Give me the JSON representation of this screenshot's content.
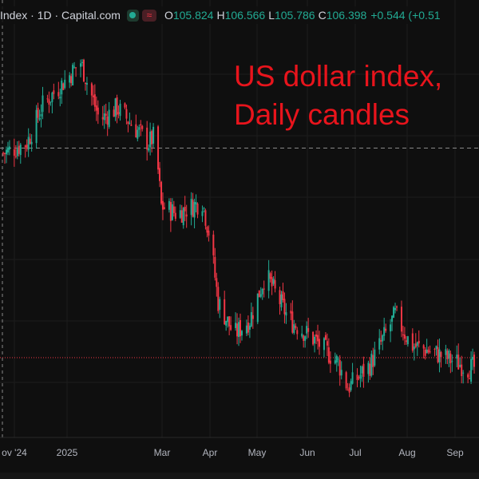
{
  "legend": {
    "symbol": "Index · 1D · Capital.com",
    "open_label": "O",
    "open": "105.824",
    "high_label": "H",
    "high": "106.566",
    "low_label": "L",
    "low": "105.786",
    "close_label": "C",
    "close": "106.398",
    "change": "+0.544 (+0.51"
  },
  "title_lines": [
    "US dollar index,",
    "Daily candles"
  ],
  "colors": {
    "up": "#22ab94",
    "down": "#f23645",
    "background": "#0f0f0f",
    "annotation": "#e8141c"
  },
  "icons": [
    "visibility-dot-icon",
    "source-wave-icon"
  ],
  "chart_data": {
    "type": "candlestick",
    "title": "US dollar index, Daily candles",
    "x_ticks": [
      "ov '24",
      "2025",
      "Mar",
      "Apr",
      "May",
      "Jun",
      "Jul",
      "Aug",
      "Sep"
    ],
    "y_range": [
      95,
      111
    ],
    "reference_levels": {
      "crosshair": 106.4,
      "current_price": 98.1
    },
    "approx_close_path": [
      {
        "date": "2024-11-25",
        "close": 106.2
      },
      {
        "date": "2024-12-10",
        "close": 106.6
      },
      {
        "date": "2024-12-20",
        "close": 108.1
      },
      {
        "date": "2025-01-02",
        "close": 109.0
      },
      {
        "date": "2025-01-13",
        "close": 109.8
      },
      {
        "date": "2025-01-25",
        "close": 107.5
      },
      {
        "date": "2025-02-05",
        "close": 108.0
      },
      {
        "date": "2025-02-25",
        "close": 106.6
      },
      {
        "date": "2025-03-01",
        "close": 106.9
      },
      {
        "date": "2025-03-05",
        "close": 104.1
      },
      {
        "date": "2025-03-15",
        "close": 103.8
      },
      {
        "date": "2025-03-31",
        "close": 104.3
      },
      {
        "date": "2025-04-05",
        "close": 102.8
      },
      {
        "date": "2025-04-10",
        "close": 100.3
      },
      {
        "date": "2025-04-20",
        "close": 99.0
      },
      {
        "date": "2025-04-30",
        "close": 99.6
      },
      {
        "date": "2025-05-10",
        "close": 101.4
      },
      {
        "date": "2025-05-25",
        "close": 99.6
      },
      {
        "date": "2025-06-10",
        "close": 98.8
      },
      {
        "date": "2025-06-25",
        "close": 97.9
      },
      {
        "date": "2025-07-01",
        "close": 96.9
      },
      {
        "date": "2025-07-15",
        "close": 97.8
      },
      {
        "date": "2025-07-31",
        "close": 99.8
      },
      {
        "date": "2025-08-10",
        "close": 98.6
      },
      {
        "date": "2025-08-25",
        "close": 98.3
      },
      {
        "date": "2025-09-15",
        "close": 97.7
      }
    ]
  }
}
